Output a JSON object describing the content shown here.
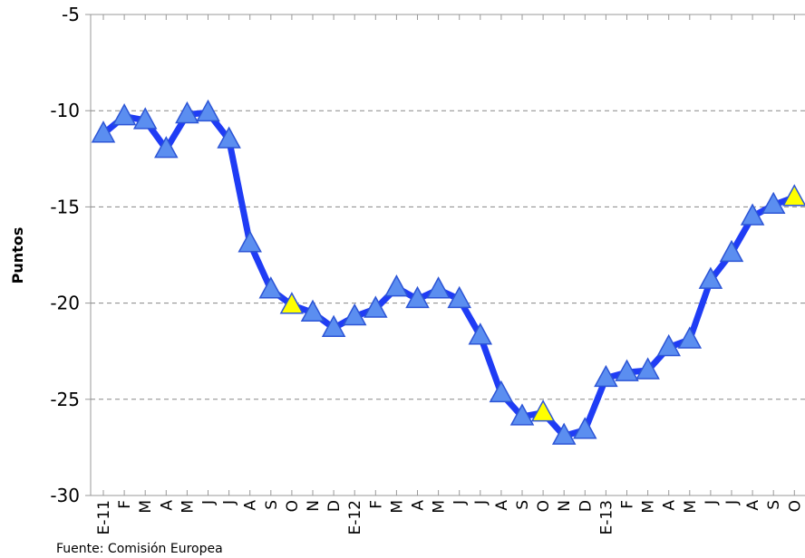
{
  "chart_data": {
    "type": "line",
    "ylabel": "Puntos",
    "source": "Fuente: Comisión Europea",
    "categories": [
      "E-11",
      "F",
      "M",
      "A",
      "M",
      "J",
      "J",
      "A",
      "S",
      "O",
      "N",
      "D",
      "E-12",
      "F",
      "M",
      "A",
      "M",
      "J",
      "J",
      "A",
      "S",
      "O",
      "N",
      "D",
      "E-13",
      "F",
      "M",
      "A",
      "M",
      "J",
      "J",
      "A",
      "S",
      "O"
    ],
    "series": [
      {
        "name": "Puntos",
        "color": "#1f3cf5",
        "values": [
          -11.2,
          -10.3,
          -10.5,
          -12.0,
          -10.2,
          -10.1,
          -11.5,
          -16.9,
          -19.3,
          -20.1,
          -20.5,
          -21.3,
          -20.7,
          -20.3,
          -19.2,
          -19.8,
          -19.3,
          -19.8,
          -21.7,
          -24.7,
          -25.9,
          -25.7,
          -26.9,
          -26.6,
          -23.9,
          -23.6,
          -23.5,
          -22.3,
          -21.9,
          -18.8,
          -17.4,
          -15.5,
          -14.9,
          -14.5
        ],
        "marker_colors": [
          "#5b8ef0",
          "#5b8ef0",
          "#5b8ef0",
          "#5b8ef0",
          "#5b8ef0",
          "#5b8ef0",
          "#5b8ef0",
          "#5b8ef0",
          "#5b8ef0",
          "#ffff00",
          "#5b8ef0",
          "#5b8ef0",
          "#5b8ef0",
          "#5b8ef0",
          "#5b8ef0",
          "#5b8ef0",
          "#5b8ef0",
          "#5b8ef0",
          "#5b8ef0",
          "#5b8ef0",
          "#5b8ef0",
          "#ffff00",
          "#5b8ef0",
          "#5b8ef0",
          "#5b8ef0",
          "#5b8ef0",
          "#5b8ef0",
          "#5b8ef0",
          "#5b8ef0",
          "#5b8ef0",
          "#5b8ef0",
          "#5b8ef0",
          "#5b8ef0",
          "#ffff00"
        ]
      }
    ],
    "ylim": [
      -30,
      -5
    ],
    "yticks": [
      -30,
      -25,
      -20,
      -15,
      -10,
      -5
    ],
    "grid": true
  }
}
